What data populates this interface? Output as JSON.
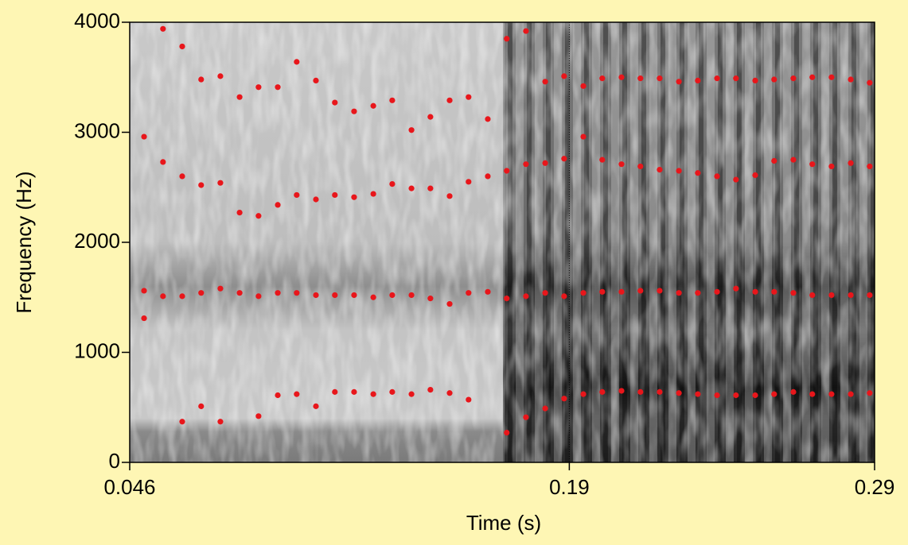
{
  "chart_data": {
    "type": "scatter",
    "x_label": "Time (s)",
    "y_label": "Frequency (Hz)",
    "xlim": [
      0.046,
      0.29
    ],
    "ylim": [
      0,
      4000
    ],
    "xticks": [
      0.046,
      0.19,
      0.29
    ],
    "yticks": [
      0,
      1000,
      2000,
      3000,
      4000
    ],
    "color": "#e8161b",
    "x": [
      0.0507,
      0.0507,
      0.0507,
      0.0569,
      0.0569,
      0.0569,
      0.0632,
      0.0632,
      0.0632,
      0.0632,
      0.0694,
      0.0694,
      0.0694,
      0.0694,
      0.0757,
      0.0757,
      0.0757,
      0.0757,
      0.082,
      0.082,
      0.082,
      0.0882,
      0.0882,
      0.0882,
      0.0882,
      0.0945,
      0.0945,
      0.0945,
      0.0945,
      0.1007,
      0.1007,
      0.1007,
      0.1007,
      0.107,
      0.107,
      0.107,
      0.107,
      0.1132,
      0.1132,
      0.1132,
      0.1132,
      0.1195,
      0.1195,
      0.1195,
      0.1195,
      0.1258,
      0.1258,
      0.1258,
      0.1258,
      0.132,
      0.132,
      0.132,
      0.132,
      0.1383,
      0.1383,
      0.1383,
      0.1383,
      0.1445,
      0.1445,
      0.1445,
      0.1445,
      0.1508,
      0.1508,
      0.1508,
      0.1508,
      0.157,
      0.157,
      0.157,
      0.157,
      0.1633,
      0.1633,
      0.1633,
      0.1695,
      0.1695,
      0.1695,
      0.1695,
      0.1758,
      0.1758,
      0.1758,
      0.1758,
      0.1821,
      0.1821,
      0.1821,
      0.1821,
      0.1883,
      0.1883,
      0.1883,
      0.1883,
      0.1946,
      0.1946,
      0.1946,
      0.1946,
      0.2008,
      0.2008,
      0.2008,
      0.2008,
      0.2071,
      0.2071,
      0.2071,
      0.2071,
      0.2133,
      0.2133,
      0.2133,
      0.2133,
      0.2196,
      0.2196,
      0.2196,
      0.2196,
      0.2259,
      0.2259,
      0.2259,
      0.2259,
      0.2321,
      0.2321,
      0.2321,
      0.2321,
      0.2384,
      0.2384,
      0.2384,
      0.2384,
      0.2446,
      0.2446,
      0.2446,
      0.2446,
      0.2509,
      0.2509,
      0.2509,
      0.2509,
      0.2571,
      0.2571,
      0.2571,
      0.2571,
      0.2634,
      0.2634,
      0.2634,
      0.2634,
      0.2696,
      0.2696,
      0.2696,
      0.2696,
      0.2759,
      0.2759,
      0.2759,
      0.2759,
      0.2822,
      0.2822,
      0.2822,
      0.2822,
      0.2884,
      0.2884,
      0.2884,
      0.2884
    ],
    "values": [
      2960,
      1560,
      1310,
      3940,
      2730,
      1510,
      3780,
      2600,
      1510,
      370,
      3480,
      2520,
      1540,
      510,
      3510,
      2540,
      1580,
      370,
      3320,
      2270,
      1540,
      3410,
      2240,
      1510,
      420,
      3410,
      2340,
      1540,
      610,
      3640,
      2430,
      1540,
      620,
      3470,
      2390,
      1520,
      510,
      3270,
      2430,
      1520,
      640,
      3190,
      2410,
      1520,
      640,
      3240,
      2440,
      1500,
      620,
      3290,
      2530,
      1520,
      640,
      3020,
      2490,
      1520,
      620,
      3140,
      2490,
      1490,
      660,
      3290,
      2420,
      1440,
      630,
      3320,
      2550,
      1540,
      570,
      3120,
      2600,
      1550,
      3850,
      2650,
      1490,
      270,
      3920,
      2710,
      1510,
      410,
      3460,
      2720,
      1540,
      490,
      3510,
      2760,
      1510,
      580,
      3420,
      2960,
      1540,
      620,
      3490,
      2750,
      1550,
      640,
      3500,
      2710,
      1550,
      650,
      3490,
      2690,
      1560,
      640,
      3490,
      2660,
      1560,
      640,
      3460,
      2650,
      1540,
      630,
      3470,
      2630,
      1540,
      620,
      3490,
      2600,
      1550,
      610,
      3490,
      2570,
      1580,
      610,
      3470,
      2610,
      1550,
      610,
      3480,
      2740,
      1550,
      620,
      3490,
      2750,
      1540,
      640,
      3500,
      2710,
      1520,
      620,
      3500,
      2690,
      1520,
      620,
      3480,
      2720,
      1520,
      620,
      3450,
      2690,
      1520,
      630
    ]
  }
}
